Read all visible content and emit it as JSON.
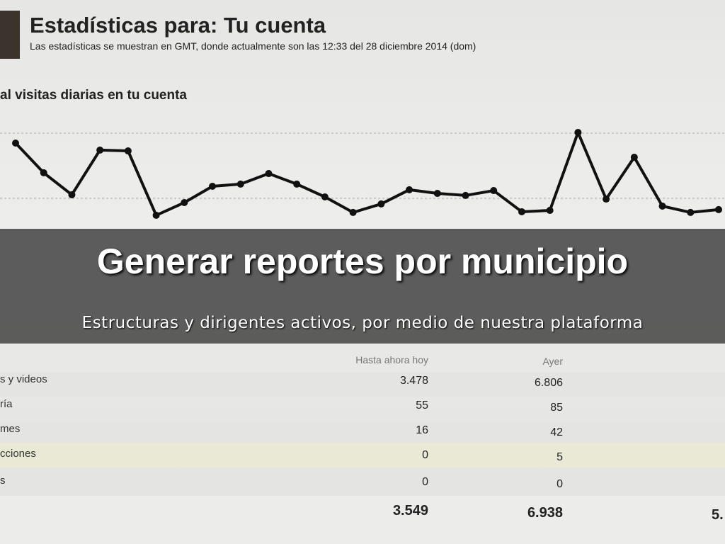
{
  "header": {
    "title": "Estadísticas para: Tu cuenta",
    "subtitle": "Las estadísticas se muestran en GMT, donde actualmente son las 12:33 del 28 diciembre 2014 (dom)"
  },
  "chart_data": {
    "type": "line",
    "title": "al visitas diarias en tu cuenta",
    "color": "#111111",
    "values": [
      80,
      53.8,
      34.4,
      73.8,
      73.1,
      16.3,
      27.5,
      41.9,
      43.8,
      53.1,
      43.8,
      32.5,
      18.8,
      26.3,
      38.8,
      35.6,
      33.8,
      38.1,
      19.4,
      20.6,
      89.4,
      30.6,
      67.5,
      24.4,
      18.8,
      21.3
    ],
    "ylim": [
      0,
      100
    ]
  },
  "overlay": {
    "title": "Generar reportes por municipio",
    "subtitle": "Estructuras y dirigentes activos, por medio de nuestra plataforma"
  },
  "table": {
    "columns": [
      "Hasta ahora hoy",
      "Ayer"
    ],
    "rows": [
      [
        "s y videos",
        "3.478",
        "6.806"
      ],
      [
        "ría",
        "55",
        "85"
      ],
      [
        "mes",
        "16",
        "42"
      ],
      [
        "cciones",
        "0",
        "5"
      ],
      [
        "s",
        "0",
        "0"
      ]
    ],
    "totals": [
      "3.549",
      "6.938",
      "5."
    ]
  }
}
